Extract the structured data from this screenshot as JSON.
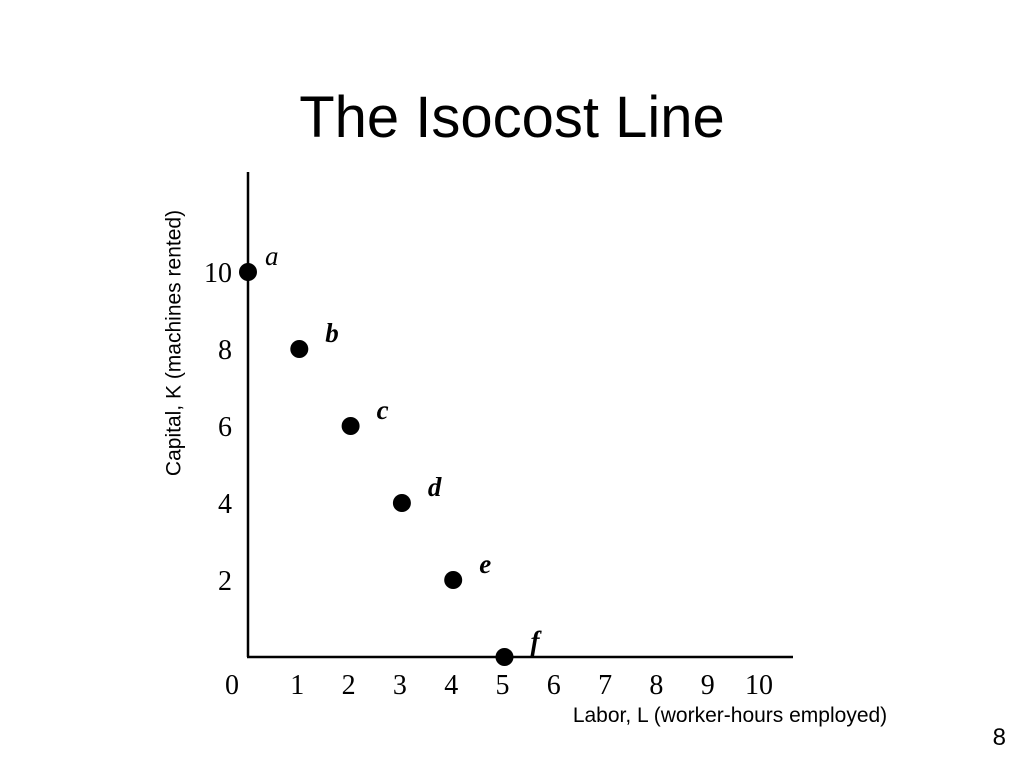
{
  "slide": {
    "title": "The Isocost Line",
    "page_number": "8"
  },
  "chart_data": {
    "type": "scatter",
    "title": "The Isocost Line",
    "xlabel": "Labor, L (worker-hours employed)",
    "ylabel": "Capital, K (machines rented)",
    "xlim": [
      0,
      10
    ],
    "ylim": [
      0,
      12.5
    ],
    "x_ticks": [
      "0",
      "1",
      "2",
      "3",
      "4",
      "5",
      "6",
      "7",
      "8",
      "9",
      "10"
    ],
    "y_ticks": [
      "2",
      "4",
      "6",
      "8",
      "10"
    ],
    "grid": false,
    "point_color": "#000000",
    "points": [
      {
        "label": "a",
        "x": 0,
        "y": 10
      },
      {
        "label": "b",
        "x": 1,
        "y": 8
      },
      {
        "label": "c",
        "x": 2,
        "y": 6
      },
      {
        "label": "d",
        "x": 3,
        "y": 4
      },
      {
        "label": "e",
        "x": 4,
        "y": 2
      },
      {
        "label": "f",
        "x": 5,
        "y": 0
      }
    ]
  }
}
